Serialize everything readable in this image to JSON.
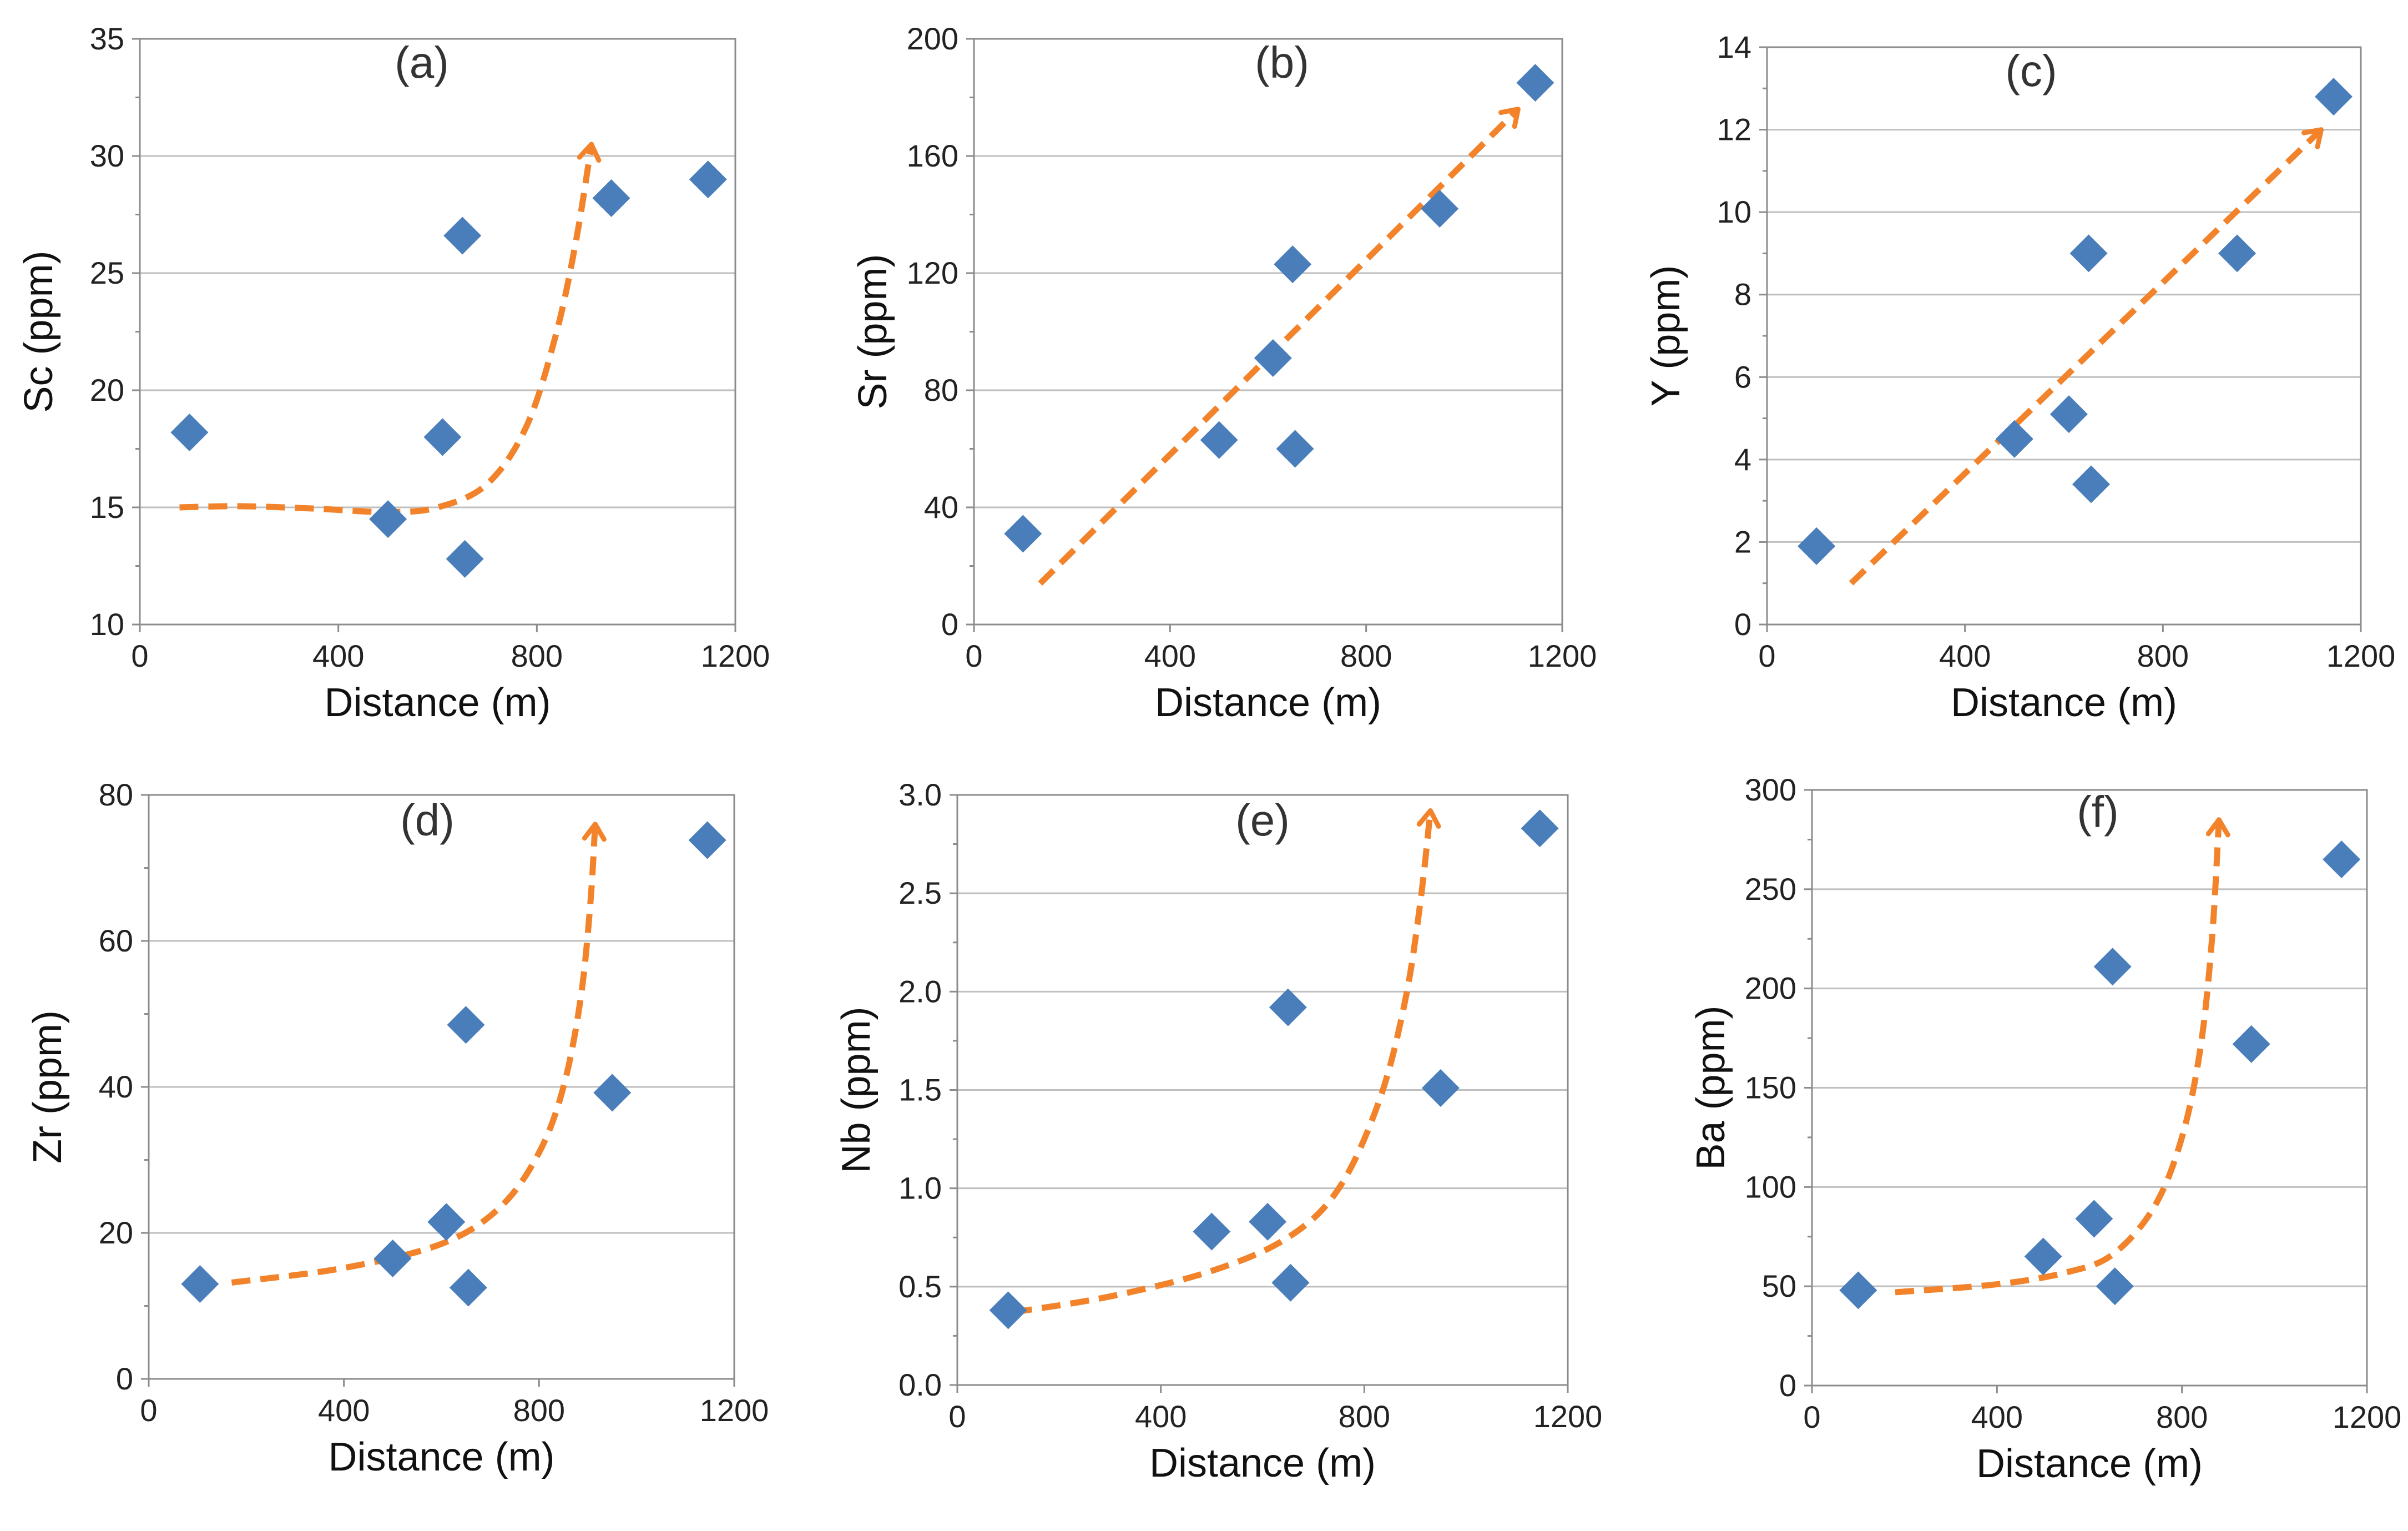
{
  "chart_data": [
    {
      "type": "scatter",
      "panel_label": "(a)",
      "xlabel": "Distance (m)",
      "ylabel": "Sc (ppm)",
      "xlim": [
        0,
        1200
      ],
      "ylim": [
        10,
        35
      ],
      "xticks": [
        0,
        400,
        800,
        1200
      ],
      "yticks": [
        10,
        15,
        20,
        25,
        30,
        35
      ],
      "ytick_labels": [
        "10",
        "15",
        "20",
        "25",
        "30",
        "35"
      ],
      "grid": true,
      "points": [
        {
          "x": 100,
          "y": 18.2
        },
        {
          "x": 500,
          "y": 14.5
        },
        {
          "x": 610,
          "y": 18.0
        },
        {
          "x": 650,
          "y": 26.6
        },
        {
          "x": 655,
          "y": 12.8
        },
        {
          "x": 950,
          "y": 28.2
        },
        {
          "x": 1145,
          "y": 29.0
        }
      ],
      "trend": [
        {
          "x": 80,
          "y": 15.0
        },
        {
          "x": 200,
          "y": 15.05
        },
        {
          "x": 350,
          "y": 14.95
        },
        {
          "x": 500,
          "y": 14.8
        },
        {
          "x": 600,
          "y": 15.0
        },
        {
          "x": 700,
          "y": 16.0
        },
        {
          "x": 780,
          "y": 18.5
        },
        {
          "x": 840,
          "y": 22.5
        },
        {
          "x": 880,
          "y": 26.5
        },
        {
          "x": 910,
          "y": 30.5
        }
      ]
    },
    {
      "type": "scatter",
      "panel_label": "(b)",
      "xlabel": "Distance (m)",
      "ylabel": "Sr (ppm)",
      "xlim": [
        0,
        1200
      ],
      "ylim": [
        0,
        200
      ],
      "xticks": [
        0,
        400,
        800,
        1200
      ],
      "yticks": [
        0,
        40,
        80,
        120,
        160,
        200
      ],
      "ytick_labels": [
        "0",
        "40",
        "80",
        "120",
        "160",
        "200"
      ],
      "grid": true,
      "points": [
        {
          "x": 100,
          "y": 31
        },
        {
          "x": 500,
          "y": 63
        },
        {
          "x": 610,
          "y": 91
        },
        {
          "x": 650,
          "y": 123
        },
        {
          "x": 655,
          "y": 60
        },
        {
          "x": 950,
          "y": 142
        },
        {
          "x": 1145,
          "y": 185
        }
      ],
      "trend": [
        {
          "x": 135,
          "y": 14
        },
        {
          "x": 1110,
          "y": 176
        }
      ]
    },
    {
      "type": "scatter",
      "panel_label": "(c)",
      "xlabel": "Distance (m)",
      "ylabel": "Y (ppm)",
      "xlim": [
        0,
        1200
      ],
      "ylim": [
        0,
        14
      ],
      "xticks": [
        0,
        400,
        800,
        1200
      ],
      "yticks": [
        0,
        2,
        4,
        6,
        8,
        10,
        12,
        14
      ],
      "ytick_labels": [
        "0",
        "2",
        "4",
        "6",
        "8",
        "10",
        "12",
        "14"
      ],
      "grid": true,
      "points": [
        {
          "x": 100,
          "y": 1.9
        },
        {
          "x": 500,
          "y": 4.5
        },
        {
          "x": 610,
          "y": 5.1
        },
        {
          "x": 650,
          "y": 9.0
        },
        {
          "x": 655,
          "y": 3.4
        },
        {
          "x": 950,
          "y": 9.0
        },
        {
          "x": 1145,
          "y": 12.8
        }
      ],
      "trend": [
        {
          "x": 170,
          "y": 1.0
        },
        {
          "x": 1120,
          "y": 12.0
        }
      ]
    },
    {
      "type": "scatter",
      "panel_label": "(d)",
      "xlabel": "Distance (m)",
      "ylabel": "Zr (ppm)",
      "xlim": [
        0,
        1200
      ],
      "ylim": [
        0,
        80
      ],
      "xticks": [
        0,
        400,
        800,
        1200
      ],
      "yticks": [
        0,
        20,
        40,
        60,
        80
      ],
      "ytick_labels": [
        "0",
        "20",
        "40",
        "60",
        "80"
      ],
      "grid": true,
      "points": [
        {
          "x": 105,
          "y": 13
        },
        {
          "x": 500,
          "y": 16.5
        },
        {
          "x": 610,
          "y": 21.5
        },
        {
          "x": 650,
          "y": 48.5
        },
        {
          "x": 655,
          "y": 12.5
        },
        {
          "x": 950,
          "y": 39.2
        },
        {
          "x": 1145,
          "y": 73.8
        }
      ],
      "trend": [
        {
          "x": 170,
          "y": 13.2
        },
        {
          "x": 400,
          "y": 15.2
        },
        {
          "x": 600,
          "y": 18.5
        },
        {
          "x": 720,
          "y": 23.5
        },
        {
          "x": 800,
          "y": 31
        },
        {
          "x": 850,
          "y": 40
        },
        {
          "x": 885,
          "y": 52
        },
        {
          "x": 905,
          "y": 65
        },
        {
          "x": 915,
          "y": 76
        }
      ]
    },
    {
      "type": "scatter",
      "panel_label": "(e)",
      "xlabel": "Distance (m)",
      "ylabel": "Nb (ppm)",
      "xlim": [
        0,
        1200
      ],
      "ylim": [
        0,
        3.0
      ],
      "xticks": [
        0,
        400,
        800,
        1200
      ],
      "yticks": [
        0,
        0.5,
        1.0,
        1.5,
        2.0,
        2.5,
        3.0
      ],
      "ytick_labels": [
        "0.0",
        "0.5",
        "1.0",
        "1.5",
        "2.0",
        "2.5",
        "3.0"
      ],
      "grid": true,
      "points": [
        {
          "x": 100,
          "y": 0.38
        },
        {
          "x": 500,
          "y": 0.78
        },
        {
          "x": 610,
          "y": 0.83
        },
        {
          "x": 650,
          "y": 1.92
        },
        {
          "x": 655,
          "y": 0.52
        },
        {
          "x": 950,
          "y": 1.51
        },
        {
          "x": 1145,
          "y": 2.83
        }
      ],
      "trend": [
        {
          "x": 110,
          "y": 0.37
        },
        {
          "x": 300,
          "y": 0.45
        },
        {
          "x": 500,
          "y": 0.58
        },
        {
          "x": 650,
          "y": 0.75
        },
        {
          "x": 750,
          "y": 1.0
        },
        {
          "x": 830,
          "y": 1.45
        },
        {
          "x": 880,
          "y": 1.95
        },
        {
          "x": 910,
          "y": 2.45
        },
        {
          "x": 930,
          "y": 2.92
        }
      ]
    },
    {
      "type": "scatter",
      "panel_label": "(f)",
      "xlabel": "Distance (m)",
      "ylabel": "Ba (ppm)",
      "xlim": [
        0,
        1200
      ],
      "ylim": [
        0,
        300
      ],
      "xticks": [
        0,
        400,
        800,
        1200
      ],
      "yticks": [
        0,
        50,
        100,
        150,
        200,
        250,
        300
      ],
      "ytick_labels": [
        "0",
        "50",
        "100",
        "150",
        "200",
        "250",
        "300"
      ],
      "grid": true,
      "points": [
        {
          "x": 100,
          "y": 48
        },
        {
          "x": 500,
          "y": 65
        },
        {
          "x": 610,
          "y": 84
        },
        {
          "x": 650,
          "y": 211
        },
        {
          "x": 655,
          "y": 50
        },
        {
          "x": 950,
          "y": 172
        },
        {
          "x": 1145,
          "y": 265
        }
      ],
      "trend": [
        {
          "x": 180,
          "y": 47
        },
        {
          "x": 400,
          "y": 51
        },
        {
          "x": 550,
          "y": 57
        },
        {
          "x": 650,
          "y": 66
        },
        {
          "x": 740,
          "y": 90
        },
        {
          "x": 800,
          "y": 125
        },
        {
          "x": 840,
          "y": 170
        },
        {
          "x": 865,
          "y": 225
        },
        {
          "x": 880,
          "y": 285
        }
      ]
    }
  ],
  "colors": {
    "marker": "#4a7ebb",
    "trend": "#f2832a",
    "grid": "#bfbfbf",
    "axis": "#8c8c8c"
  }
}
